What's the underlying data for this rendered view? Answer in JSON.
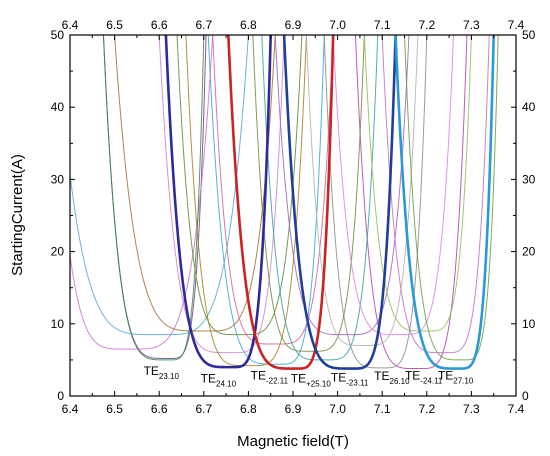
{
  "chart_data": {
    "type": "line",
    "xlabel": "Magnetic field(T)",
    "ylabel": "StartingCurrent(A)",
    "xlim": [
      6.4,
      7.4
    ],
    "ylim": [
      0,
      50
    ],
    "x_ticks": [
      "6.4",
      "6.5",
      "6.6",
      "6.7",
      "6.8",
      "6.9",
      "7.0",
      "7.1",
      "7.2",
      "7.3",
      "7.4"
    ],
    "y_ticks": [
      "0",
      "10",
      "20",
      "30",
      "40",
      "50"
    ],
    "mirror_axes": true,
    "grid": false,
    "legend": "none",
    "series": [
      {
        "name": "TE23.10",
        "center": 6.62,
        "min": 5.2,
        "left_at_50": 6.475,
        "right_at_50": 6.705,
        "color": "#6a3d9a",
        "bold": false
      },
      {
        "name": "TE24.10",
        "center": 6.76,
        "min": 4.0,
        "left_at_50": 6.615,
        "right_at_50": 6.85,
        "color": "#2e2a9a",
        "bold": true
      },
      {
        "name": "TE-22.11",
        "center": 6.865,
        "min": 4.4,
        "left_at_50": 6.71,
        "right_at_50": 6.97,
        "color": "#2aa7d6",
        "bold": false
      },
      {
        "name": "TE+25.10",
        "center": 6.905,
        "min": 3.8,
        "left_at_50": 6.755,
        "right_at_50": 6.99,
        "color": "#cc2222",
        "bold": true
      },
      {
        "name": "TE-23.11",
        "center": 7.03,
        "min": 3.8,
        "left_at_50": 6.88,
        "right_at_50": 7.13,
        "color": "#1f3f9a",
        "bold": true
      },
      {
        "name": "TE26.10",
        "center": 7.1,
        "min": 3.9,
        "left_at_50": 6.97,
        "right_at_50": 7.2,
        "color": "#8a8a8a",
        "bold": false
      },
      {
        "name": "TE-24.11",
        "center": 7.18,
        "min": 3.8,
        "left_at_50": 7.04,
        "right_at_50": 7.29,
        "color": "#b040b0",
        "bold": false
      },
      {
        "name": "TE27.10",
        "center": 7.27,
        "min": 3.8,
        "left_at_50": 7.13,
        "right_at_50": 7.35,
        "color": "#2a9ad6",
        "bold": true
      },
      {
        "name": "",
        "center": 6.53,
        "min": 6.5,
        "left_at_50": 6.36,
        "right_at_50": 6.72,
        "color": "#d070d0",
        "bold": false
      },
      {
        "name": "",
        "center": 6.62,
        "min": 5.0,
        "left_at_50": 6.475,
        "right_at_50": 6.7,
        "color": "#3a8a3a",
        "bold": false
      },
      {
        "name": "",
        "center": 6.6,
        "min": 8.5,
        "left_at_50": 6.37,
        "right_at_50": 6.8,
        "color": "#50a8d8",
        "bold": false
      },
      {
        "name": "",
        "center": 6.7,
        "min": 9.0,
        "left_at_50": 6.5,
        "right_at_50": 6.86,
        "color": "#a07030",
        "bold": false
      },
      {
        "name": "",
        "center": 6.76,
        "min": 6.0,
        "left_at_50": 6.6,
        "right_at_50": 6.88,
        "color": "#d080d0",
        "bold": false
      },
      {
        "name": "",
        "center": 6.78,
        "min": 8.5,
        "left_at_50": 6.64,
        "right_at_50": 6.92,
        "color": "#5a8a30",
        "bold": false
      },
      {
        "name": "",
        "center": 6.8,
        "min": 4.2,
        "left_at_50": 6.66,
        "right_at_50": 6.93,
        "color": "#a08020",
        "bold": false
      },
      {
        "name": "",
        "center": 6.86,
        "min": 7.2,
        "left_at_50": 6.72,
        "right_at_50": 6.99,
        "color": "#d060a0",
        "bold": false
      },
      {
        "name": "",
        "center": 6.94,
        "min": 6.2,
        "left_at_50": 6.81,
        "right_at_50": 7.06,
        "color": "#708838",
        "bold": false
      },
      {
        "name": "",
        "center": 6.97,
        "min": 5.0,
        "left_at_50": 6.83,
        "right_at_50": 7.09,
        "color": "#30a0a0",
        "bold": false
      },
      {
        "name": "",
        "center": 7.02,
        "min": 8.5,
        "left_at_50": 6.86,
        "right_at_50": 7.16,
        "color": "#a060c0",
        "bold": false
      },
      {
        "name": "",
        "center": 7.06,
        "min": 7.0,
        "left_at_50": 6.93,
        "right_at_50": 7.18,
        "color": "#b0b0b0",
        "bold": false
      },
      {
        "name": "",
        "center": 7.14,
        "min": 8.5,
        "left_at_50": 6.99,
        "right_at_50": 7.26,
        "color": "#e080e0",
        "bold": false
      },
      {
        "name": "",
        "center": 7.2,
        "min": 9.0,
        "left_at_50": 7.06,
        "right_at_50": 7.3,
        "color": "#90c050",
        "bold": false
      },
      {
        "name": "",
        "center": 7.24,
        "min": 6.0,
        "left_at_50": 7.1,
        "right_at_50": 7.34,
        "color": "#c070c0",
        "bold": false
      },
      {
        "name": "",
        "center": 7.28,
        "min": 5.0,
        "left_at_50": 7.15,
        "right_at_50": 7.36,
        "color": "#6a9a3a",
        "bold": false
      }
    ],
    "annotations": [
      {
        "main": "TE",
        "sub": "23.10",
        "x": 6.565,
        "y": 2.9
      },
      {
        "main": "TE",
        "sub": "24.10",
        "x": 6.693,
        "y": 1.9
      },
      {
        "main": "TE",
        "sub": "-22.11",
        "x": 6.805,
        "y": 2.3
      },
      {
        "main": "TE",
        "sub": "+25.10",
        "x": 6.895,
        "y": 1.9
      },
      {
        "main": "TE",
        "sub": "-23.11",
        "x": 6.985,
        "y": 2.0
      },
      {
        "main": "TE",
        "sub": "26.10",
        "x": 7.082,
        "y": 2.2
      },
      {
        "main": "TE",
        "sub": "-24.11",
        "x": 7.151,
        "y": 2.3
      },
      {
        "main": "TE",
        "sub": "27.10",
        "x": 7.225,
        "y": 2.3
      }
    ]
  }
}
